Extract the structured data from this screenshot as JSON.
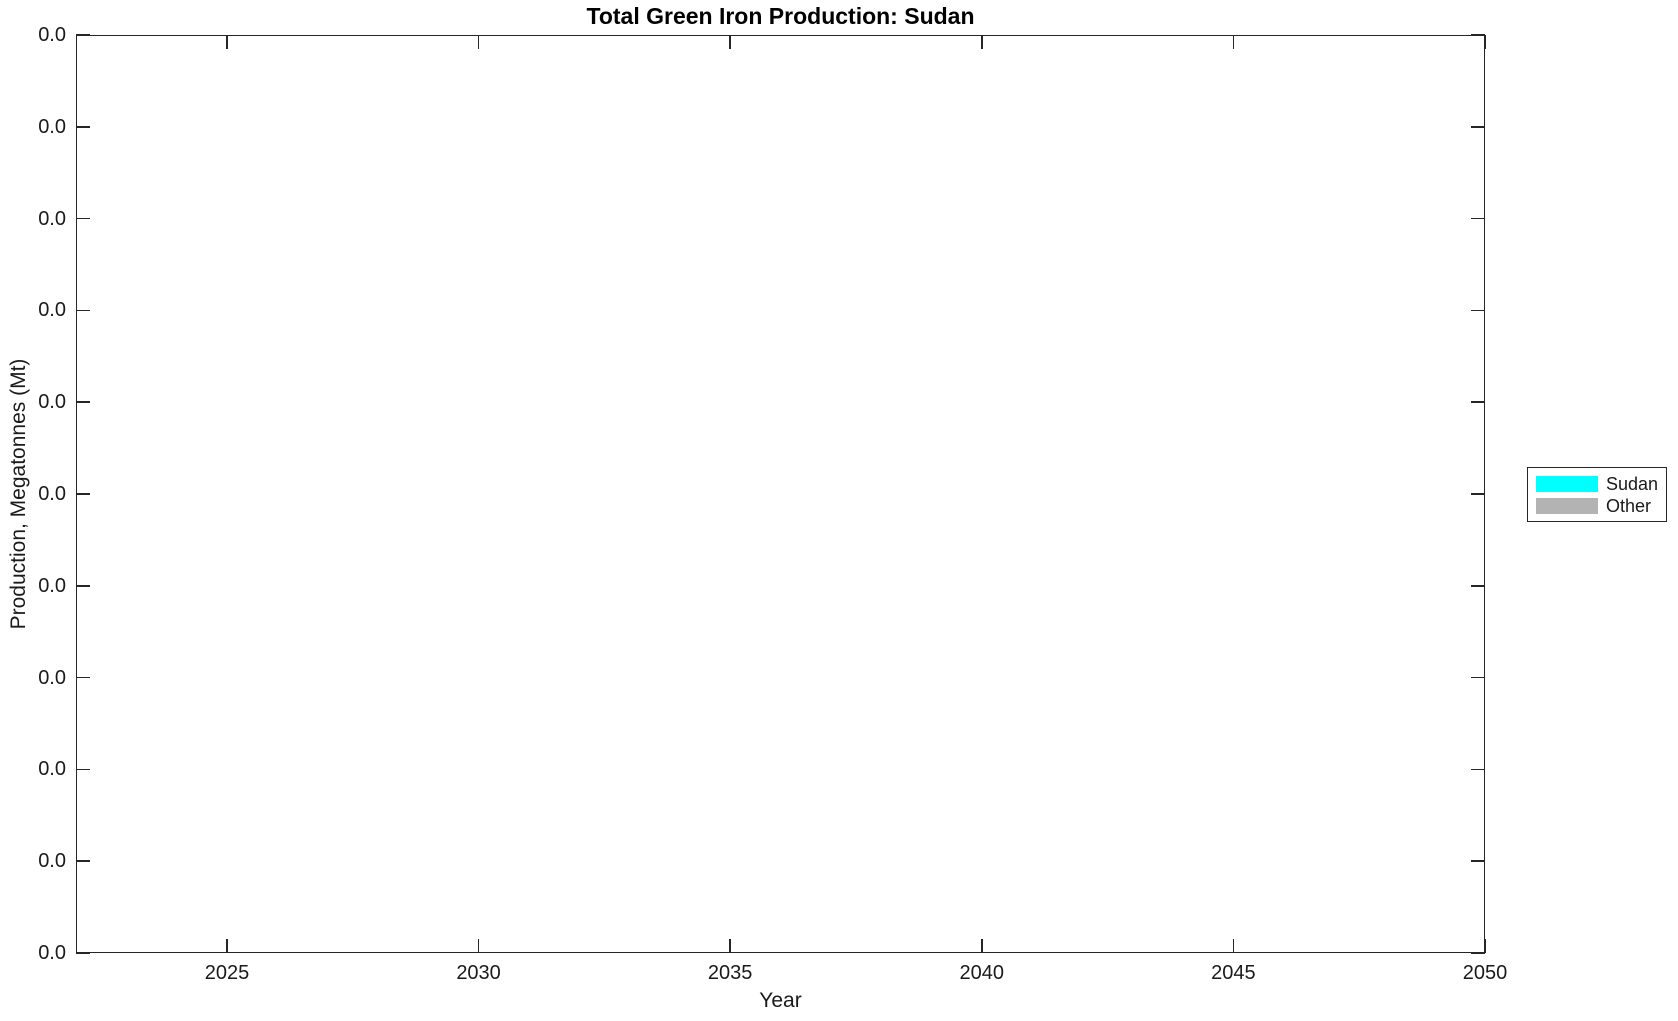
{
  "figure": {
    "title": "Total Green Iron Production: Sudan",
    "xlabel": "Year",
    "ylabel": "Production, Megatonnes (Mt)"
  },
  "axes": {
    "x_tick_labels": [
      "2025",
      "2030",
      "2035",
      "2040",
      "2045",
      "2050"
    ],
    "y_tick_labels": [
      "0.0",
      "0.0",
      "0.0",
      "0.0",
      "0.0",
      "0.0",
      "0.0",
      "0.0",
      "0.0",
      "0.0",
      "0.0"
    ]
  },
  "legend": {
    "entries": [
      {
        "label": "Sudan",
        "color": "#00FFFF"
      },
      {
        "label": "Other",
        "color": "#B3B3B3"
      }
    ]
  },
  "colors": {
    "axis": "#262626",
    "text": "#1a1a1a",
    "background": "#ffffff",
    "sudan_series": "#00FFFF",
    "other_series": "#B3B3B3"
  },
  "chart_data": {
    "type": "area",
    "title": "Total Green Iron Production: Sudan",
    "xlabel": "Year",
    "ylabel": "Production, Megatonnes (Mt)",
    "x": [
      2022,
      2023,
      2024,
      2025,
      2026,
      2027,
      2028,
      2029,
      2030,
      2031,
      2032,
      2033,
      2034,
      2035,
      2036,
      2037,
      2038,
      2039,
      2040,
      2041,
      2042,
      2043,
      2044,
      2045,
      2046,
      2047,
      2048,
      2049,
      2050
    ],
    "series": [
      {
        "name": "Sudan",
        "color": "#00FFFF",
        "values": [
          0,
          0,
          0,
          0,
          0,
          0,
          0,
          0,
          0,
          0,
          0,
          0,
          0,
          0,
          0,
          0,
          0,
          0,
          0,
          0,
          0,
          0,
          0,
          0,
          0,
          0,
          0,
          0,
          0
        ]
      },
      {
        "name": "Other",
        "color": "#B3B3B3",
        "values": [
          0,
          0,
          0,
          0,
          0,
          0,
          0,
          0,
          0,
          0,
          0,
          0,
          0,
          0,
          0,
          0,
          0,
          0,
          0,
          0,
          0,
          0,
          0,
          0,
          0,
          0,
          0,
          0,
          0
        ]
      }
    ],
    "xlim": [
      2022,
      2050
    ],
    "x_ticks": [
      2025,
      2030,
      2035,
      2040,
      2045,
      2050
    ],
    "y_ticks_all_read": "0.0",
    "y_tick_count": 11,
    "grid": false,
    "legend_position": "outside-right",
    "note": "plot area is empty: both series are zero for all years"
  }
}
